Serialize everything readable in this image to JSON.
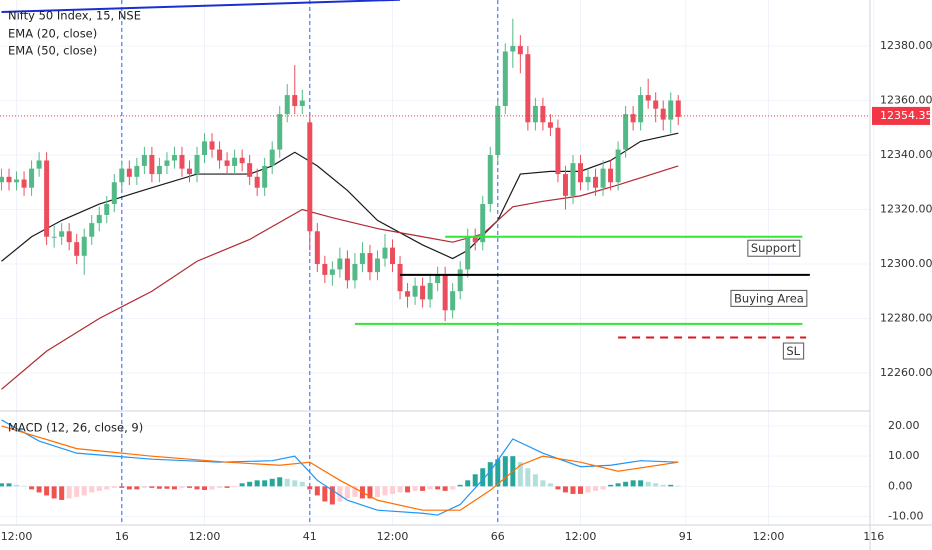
{
  "chart_data": {
    "type": "candlestick",
    "title": "Nifty 50 Index, 15, NSE",
    "up_color": "#53b987",
    "down_color": "#eb4d5c",
    "open": [
      12330,
      12332,
      12330,
      12331,
      12328,
      12335,
      12338,
      12310,
      12310,
      12312,
      12308,
      12303,
      12310,
      12315,
      12318,
      12322,
      12330,
      12335,
      12332,
      12336,
      12340,
      12333,
      12336,
      12338,
      12340,
      12335,
      12333,
      12340,
      12345,
      12342,
      12338,
      12336,
      12339,
      12337,
      12332,
      12328,
      12336,
      12342,
      12355,
      12362,
      12358,
      12352,
      12312,
      12300,
      12296,
      12298,
      12302,
      12294,
      12300,
      12304,
      12297,
      12302,
      12306,
      12300,
      12290,
      12288,
      12292,
      12287,
      12293,
      12296,
      12283,
      12290,
      12298,
      12310,
      12308,
      12322,
      12340,
      12358,
      12378,
      12380,
      12377,
      12352,
      12358,
      12352,
      12350,
      12333,
      12325,
      12337,
      12330,
      12332,
      12328,
      12335,
      12330,
      12342,
      12355,
      12352,
      12362,
      12360,
      12357,
      12353,
      12360
    ],
    "high": [
      12335,
      12335,
      12334,
      12334,
      12338,
      12341,
      12341,
      12314,
      12315,
      12315,
      12311,
      12313,
      12318,
      12321,
      12325,
      12333,
      12338,
      12338,
      12339,
      12343,
      12343,
      12339,
      12341,
      12343,
      12343,
      12338,
      12343,
      12348,
      12348,
      12345,
      12341,
      12342,
      12342,
      12340,
      12335,
      12339,
      12345,
      12358,
      12366,
      12373,
      12364,
      12355,
      12315,
      12303,
      12301,
      12306,
      12305,
      12304,
      12308,
      12307,
      12305,
      12311,
      12309,
      12303,
      12293,
      12295,
      12295,
      12296,
      12299,
      12299,
      12293,
      12301,
      12313,
      12313,
      12325,
      12343,
      12361,
      12381,
      12390,
      12384,
      12380,
      12361,
      12361,
      12355,
      12353,
      12336,
      12340,
      12340,
      12335,
      12335,
      12338,
      12338,
      12345,
      12358,
      12358,
      12365,
      12368,
      12363,
      12360,
      12363,
      12362
    ],
    "low": [
      12327,
      12327,
      12327,
      12325,
      12325,
      12332,
      12307,
      12306,
      12307,
      12305,
      12300,
      12296,
      12307,
      12312,
      12315,
      12319,
      12327,
      12329,
      12329,
      12333,
      12330,
      12330,
      12333,
      12335,
      12332,
      12330,
      12330,
      12337,
      12339,
      12335,
      12333,
      12333,
      12334,
      12329,
      12325,
      12325,
      12333,
      12339,
      12352,
      12355,
      12355,
      12305,
      12297,
      12293,
      12292,
      12295,
      12291,
      12291,
      12297,
      12294,
      12294,
      12299,
      12297,
      12287,
      12284,
      12285,
      12284,
      12284,
      12290,
      12279,
      12280,
      12287,
      12295,
      12305,
      12305,
      12319,
      12337,
      12355,
      12372,
      12370,
      12349,
      12349,
      12349,
      12347,
      12330,
      12320,
      12322,
      12327,
      12327,
      12325,
      12325,
      12327,
      12327,
      12339,
      12349,
      12349,
      12357,
      12352,
      12349,
      12348,
      12351
    ],
    "close": [
      12332,
      12330,
      12331,
      12328,
      12335,
      12338,
      12310,
      12310,
      12312,
      12308,
      12303,
      12310,
      12315,
      12318,
      12322,
      12330,
      12335,
      12332,
      12336,
      12340,
      12333,
      12336,
      12338,
      12340,
      12335,
      12333,
      12340,
      12345,
      12342,
      12338,
      12336,
      12339,
      12337,
      12332,
      12328,
      12336,
      12342,
      12355,
      12362,
      12358,
      12360,
      12312,
      12300,
      12296,
      12298,
      12302,
      12294,
      12300,
      12304,
      12297,
      12302,
      12306,
      12300,
      12290,
      12288,
      12292,
      12287,
      12293,
      12296,
      12283,
      12290,
      12298,
      12310,
      12308,
      12322,
      12340,
      12358,
      12378,
      12380,
      12377,
      12352,
      12358,
      12352,
      12350,
      12333,
      12325,
      12337,
      12330,
      12332,
      12328,
      12335,
      12330,
      12342,
      12355,
      12352,
      12362,
      12360,
      12357,
      12353,
      12360,
      12354
    ],
    "xlim": [
      -0.2,
      115.5
    ],
    "xticks": [
      {
        "value": 2,
        "label": "12:00"
      },
      16,
      {
        "value": 27,
        "label": "12:00"
      },
      41,
      {
        "value": 52,
        "label": "12:00"
      },
      66,
      {
        "value": 77,
        "label": "12:00"
      },
      91,
      {
        "value": 102,
        "label": "12:00"
      },
      116
    ],
    "ylim": [
      12246.4,
      12396.9
    ],
    "yticks": [
      {
        "value": 12260,
        "label": "12260.00"
      },
      {
        "value": 12280,
        "label": "12280.00"
      },
      {
        "value": 12300,
        "label": "12300.00"
      },
      {
        "value": 12320,
        "label": "12320.00"
      },
      {
        "value": 12340,
        "label": "12340.00"
      },
      {
        "value": 12360,
        "label": "12360.00"
      },
      {
        "value": 12380,
        "label": "12380.00"
      }
    ],
    "grid": true,
    "last_price": 12354.35,
    "last_price_color": "#f23645",
    "session_breaks": [
      16,
      41,
      66
    ],
    "session_break_color": "#2962ff",
    "overlays": [
      {
        "name": "EMA (20, close)",
        "color": "#1a1a1a",
        "x": [
          0,
          4,
          8,
          13,
          20,
          26,
          33,
          36,
          39,
          42,
          46,
          50,
          56,
          60,
          62,
          66,
          69,
          73,
          77,
          81,
          85,
          90
        ],
        "values": [
          12301,
          12310,
          12316,
          12322,
          12328,
          12333,
          12333,
          12336,
          12341,
          12336,
          12327,
          12316,
          12307,
          12302,
          12305,
          12316,
          12333,
          12334,
          12334,
          12338,
          12345,
          12348
        ]
      },
      {
        "name": "EMA (50, close)",
        "color": "#b22833",
        "x": [
          0,
          6,
          13,
          20,
          26,
          33,
          40,
          44,
          50,
          56,
          60,
          64,
          68,
          72,
          77,
          82,
          90
        ],
        "values": [
          12254,
          12268,
          12280,
          12290,
          12301,
          12309,
          12320,
          12317,
          12313,
          12310,
          12308,
          12311,
          12321,
          12323,
          12325,
          12329,
          12336
        ]
      }
    ],
    "trend_line": {
      "color": "#1a2fd1",
      "x": [
        0,
        53
      ],
      "values": [
        12392.5,
        12397
      ]
    },
    "levels": [
      {
        "value": 12310,
        "x": [
          59,
          106.5
        ],
        "color": "#33e633",
        "dash": false,
        "label": "Support"
      },
      {
        "value": 12296,
        "x": [
          53,
          107.5
        ],
        "color": "#000000",
        "dash": false,
        "label": "Buying Area"
      },
      {
        "value": 12278,
        "x": [
          47,
          106.5
        ],
        "color": "#33e633",
        "dash": false
      },
      {
        "value": 12273,
        "x": [
          82,
          107
        ],
        "color": "#e0141e",
        "dash": true,
        "label": "SL"
      }
    ],
    "macd": {
      "title": "MACD (12, 26, close, 9)",
      "ylim": [
        -12.8,
        24.3
      ],
      "yticks": [
        {
          "value": -10,
          "label": "-10.00"
        },
        {
          "value": 0,
          "label": "0.00"
        },
        {
          "value": 10,
          "label": "10.00"
        },
        {
          "value": 20,
          "label": "20.00"
        }
      ],
      "histogram": [
        1,
        1,
        0.5,
        0.2,
        -1,
        -2,
        -3,
        -4,
        -4.5,
        -4,
        -3.5,
        -3,
        -2,
        -1.5,
        -1,
        -0.5,
        -0.5,
        -1,
        -1,
        -0.5,
        -0.5,
        -0.8,
        -0.8,
        -1,
        -0.5,
        -0.5,
        -1,
        -1.2,
        -1,
        -0.5,
        -0.5,
        -0.3,
        1,
        1.5,
        2,
        2,
        2.5,
        3,
        2.5,
        2,
        1.5,
        -1,
        -3,
        -5,
        -6,
        -5,
        -4,
        -3.5,
        -4,
        -4,
        -3.5,
        -3,
        -2.5,
        -2,
        -2,
        -1.5,
        -1.5,
        -1,
        -1,
        -1.5,
        -1,
        0.5,
        2,
        4,
        6,
        8,
        9,
        10,
        10,
        8,
        6,
        4,
        2,
        1,
        -1,
        -2,
        -2.5,
        -2.5,
        -2,
        -1.5,
        -1,
        0.5,
        1,
        1.5,
        2,
        2,
        1.5,
        1,
        0.5,
        0.5,
        0.2
      ],
      "histogram_colors": {
        "pos_up": "#26a69a",
        "pos_down": "#b2dfdb",
        "neg_down": "#ef5350",
        "neg_up": "#ffcdd2"
      },
      "series": [
        {
          "color": "#2196f3",
          "x": [
            0,
            5,
            10,
            20,
            29,
            36,
            39,
            42,
            46,
            50,
            56,
            58,
            61,
            65,
            68,
            72,
            77,
            81,
            85,
            90
          ],
          "values": [
            22,
            15,
            11,
            9,
            8,
            8.5,
            10,
            2,
            -4.6,
            -7.9,
            -8.9,
            -9.5,
            -6,
            5,
            15.7,
            11,
            6.5,
            7,
            8.5,
            8
          ]
        },
        {
          "color": "#ff6d00",
          "x": [
            0,
            10,
            20,
            30,
            37,
            41,
            45,
            50,
            56,
            61,
            65,
            69,
            72,
            77,
            82,
            90
          ],
          "values": [
            20,
            12.5,
            10,
            8,
            7,
            8,
            2,
            -4.6,
            -7.9,
            -7.9,
            -1.3,
            7,
            10,
            8,
            5,
            8
          ]
        }
      ]
    }
  }
}
